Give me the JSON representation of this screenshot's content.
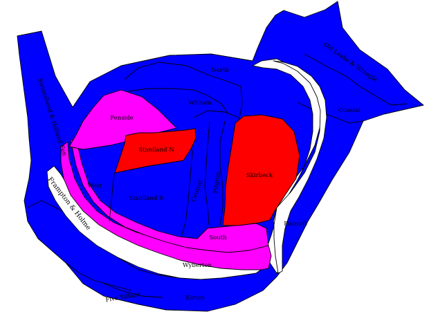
{
  "map": {
    "colors": {
      "blue": "#0000ff",
      "magenta": "#ff00ff",
      "red": "#ff0000",
      "white": "#ffffff",
      "outline": "#000000"
    },
    "wards": [
      {
        "name": "North",
        "fill": "blue"
      },
      {
        "name": "Witham",
        "fill": "blue"
      },
      {
        "name": "Fenside",
        "fill": "magenta"
      },
      {
        "name": "Staniland N",
        "fill": "red"
      },
      {
        "name": "West",
        "fill": "blue"
      },
      {
        "name": "Staniland S",
        "fill": "blue"
      },
      {
        "name": "Central",
        "fill": "blue"
      },
      {
        "name": "Pilgrim",
        "fill": "blue"
      },
      {
        "name": "Skirbeck",
        "fill": "red"
      },
      {
        "name": "Fishtoft",
        "fill": "white"
      },
      {
        "name": "South",
        "fill": "magenta"
      },
      {
        "name": "Wyberton",
        "fill": "magenta"
      },
      {
        "name": "Frampton & Holme",
        "fill": "white"
      },
      {
        "name": "Swineshead & Holland Fen",
        "fill": "blue"
      },
      {
        "name": "Old Leake & Wrangle",
        "fill": "blue"
      },
      {
        "name": "Coastal",
        "fill": "blue"
      },
      {
        "name": "Five Village",
        "fill": "blue"
      },
      {
        "name": "Kirton",
        "fill": "blue"
      }
    ]
  }
}
